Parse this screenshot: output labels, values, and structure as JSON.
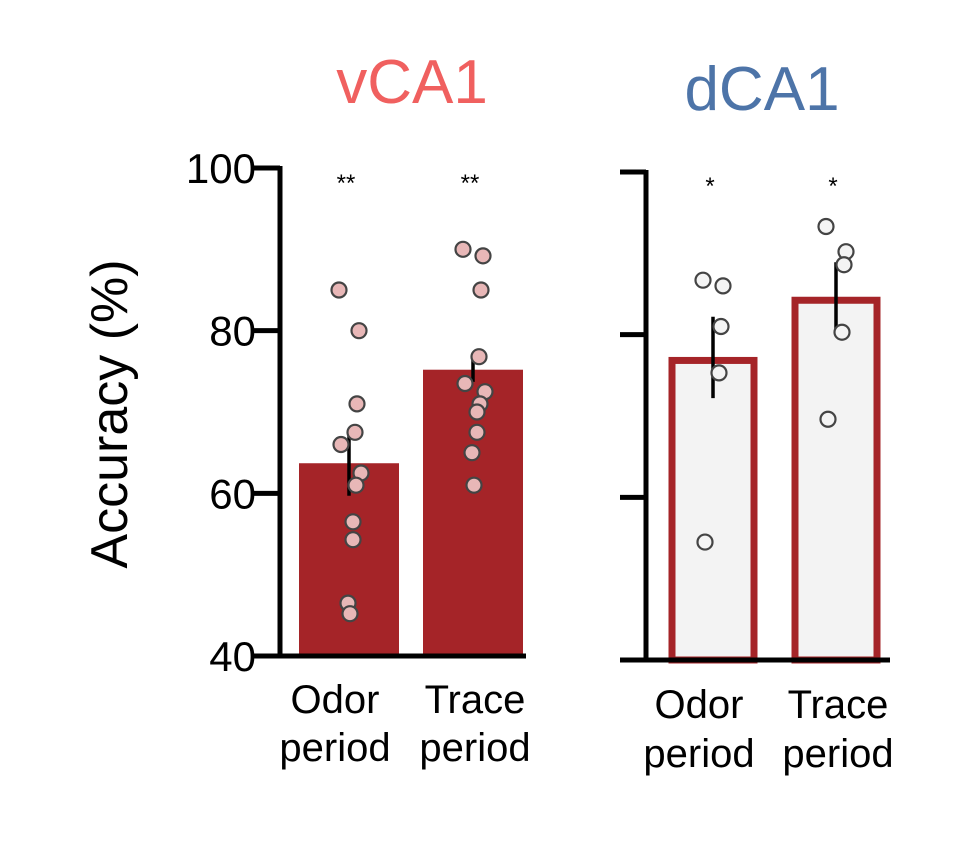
{
  "chart_data": [
    {
      "type": "bar",
      "title": "vCA1",
      "title_color": "#f0605f",
      "ylabel": "Accuracy (%)",
      "ylim": [
        40,
        100
      ],
      "yticks": [
        "100",
        "80",
        "60",
        "40"
      ],
      "yticks_labeled": true,
      "bar_style": "filled",
      "bar_color": "#a52428",
      "categories": [
        {
          "line1": "Odor",
          "line2": "period"
        },
        {
          "line1": "Trace",
          "line2": "period"
        }
      ],
      "values": [
        63.7,
        75.2
      ],
      "sem": [
        4.0,
        1.5
      ],
      "significance": [
        "**",
        "**"
      ],
      "points": [
        [
          85,
          80,
          71,
          67.5,
          66,
          62.5,
          61,
          56.5,
          54.3,
          46.5,
          45.2
        ],
        [
          90,
          89.2,
          85,
          76.8,
          73.5,
          72.5,
          71,
          70,
          67.5,
          65,
          61
        ]
      ]
    },
    {
      "type": "bar",
      "title": "dCA1",
      "title_color": "#4d74a8",
      "ylabel": "",
      "ylim": [
        40,
        100
      ],
      "yticks": [
        "",
        "",
        "",
        ""
      ],
      "yticks_labeled": false,
      "bar_style": "outline",
      "bar_color": "#a52428",
      "categories": [
        {
          "line1": "Odor",
          "line2": "period"
        },
        {
          "line1": "Trace",
          "line2": "period"
        }
      ],
      "values": [
        77.2,
        84.6
      ],
      "sem": [
        5.0,
        4.3
      ],
      "significance": [
        "*",
        "*"
      ],
      "points": [
        [
          86.7,
          86,
          81,
          75.3,
          54.5
        ],
        [
          93.3,
          90.2,
          88.6,
          80.3,
          69.6
        ]
      ]
    }
  ]
}
